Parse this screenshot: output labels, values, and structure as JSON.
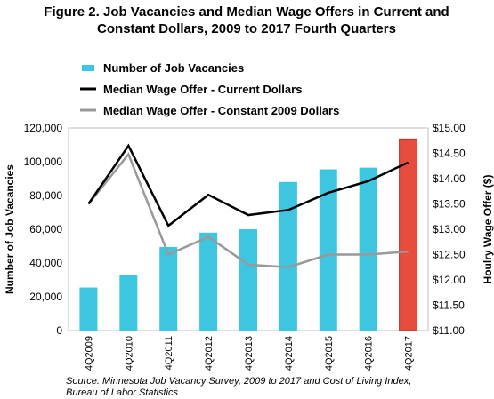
{
  "title_line1": "Figure 2. Job Vacancies and Median Wage Offers in Current and",
  "title_line2": "Constant Dollars, 2009 to 2017 Fourth Quarters",
  "source_line1": "Source: Minnesota Job Vacancy Survey, 2009 to 2017 and Cost of Living Index,",
  "source_line2": "Bureau of Labor Statistics",
  "colors": {
    "bar": "#3ec5e0",
    "bar_highlight": "#e84c3d",
    "current": "#000000",
    "constant": "#999999"
  },
  "chart_data": {
    "type": "bar",
    "categories": [
      "4Q2009",
      "4Q2010",
      "4Q2011",
      "4Q2012",
      "4Q2013",
      "4Q2014",
      "4Q2015",
      "4Q2016",
      "4Q2017"
    ],
    "ylabel": "Number of Job Vacancies",
    "ylabel_right": "Houlry Wage Offer ($)",
    "ylim": [
      0,
      120000
    ],
    "ylim_right": [
      11.0,
      15.0
    ],
    "yticks": [
      "0",
      "20,000",
      "40,000",
      "60,000",
      "80,000",
      "100,000",
      "120,000"
    ],
    "yticks_right": [
      "$11.00",
      "$11.50",
      "$12.00",
      "$12.50",
      "$13.00",
      "$13.50",
      "$14.00",
      "$14.50",
      "$15.00"
    ],
    "grid": false,
    "legend_position": "top-left",
    "series": [
      {
        "name": "Number of Job Vacancies",
        "type": "bar",
        "axis": "left",
        "values": [
          25500,
          33000,
          49500,
          58000,
          60000,
          88000,
          95500,
          96500,
          113500
        ]
      },
      {
        "name": "Median Wage Offer - Current Dollars",
        "type": "line",
        "axis": "right",
        "values": [
          13.5,
          14.65,
          13.07,
          13.68,
          13.28,
          13.38,
          13.72,
          13.95,
          14.32
        ]
      },
      {
        "name": "Median Wage Offer - Constant 2009 Dollars",
        "type": "line",
        "axis": "right",
        "values": [
          13.5,
          14.48,
          12.5,
          12.85,
          12.3,
          12.25,
          12.5,
          12.5,
          12.56
        ]
      }
    ]
  }
}
